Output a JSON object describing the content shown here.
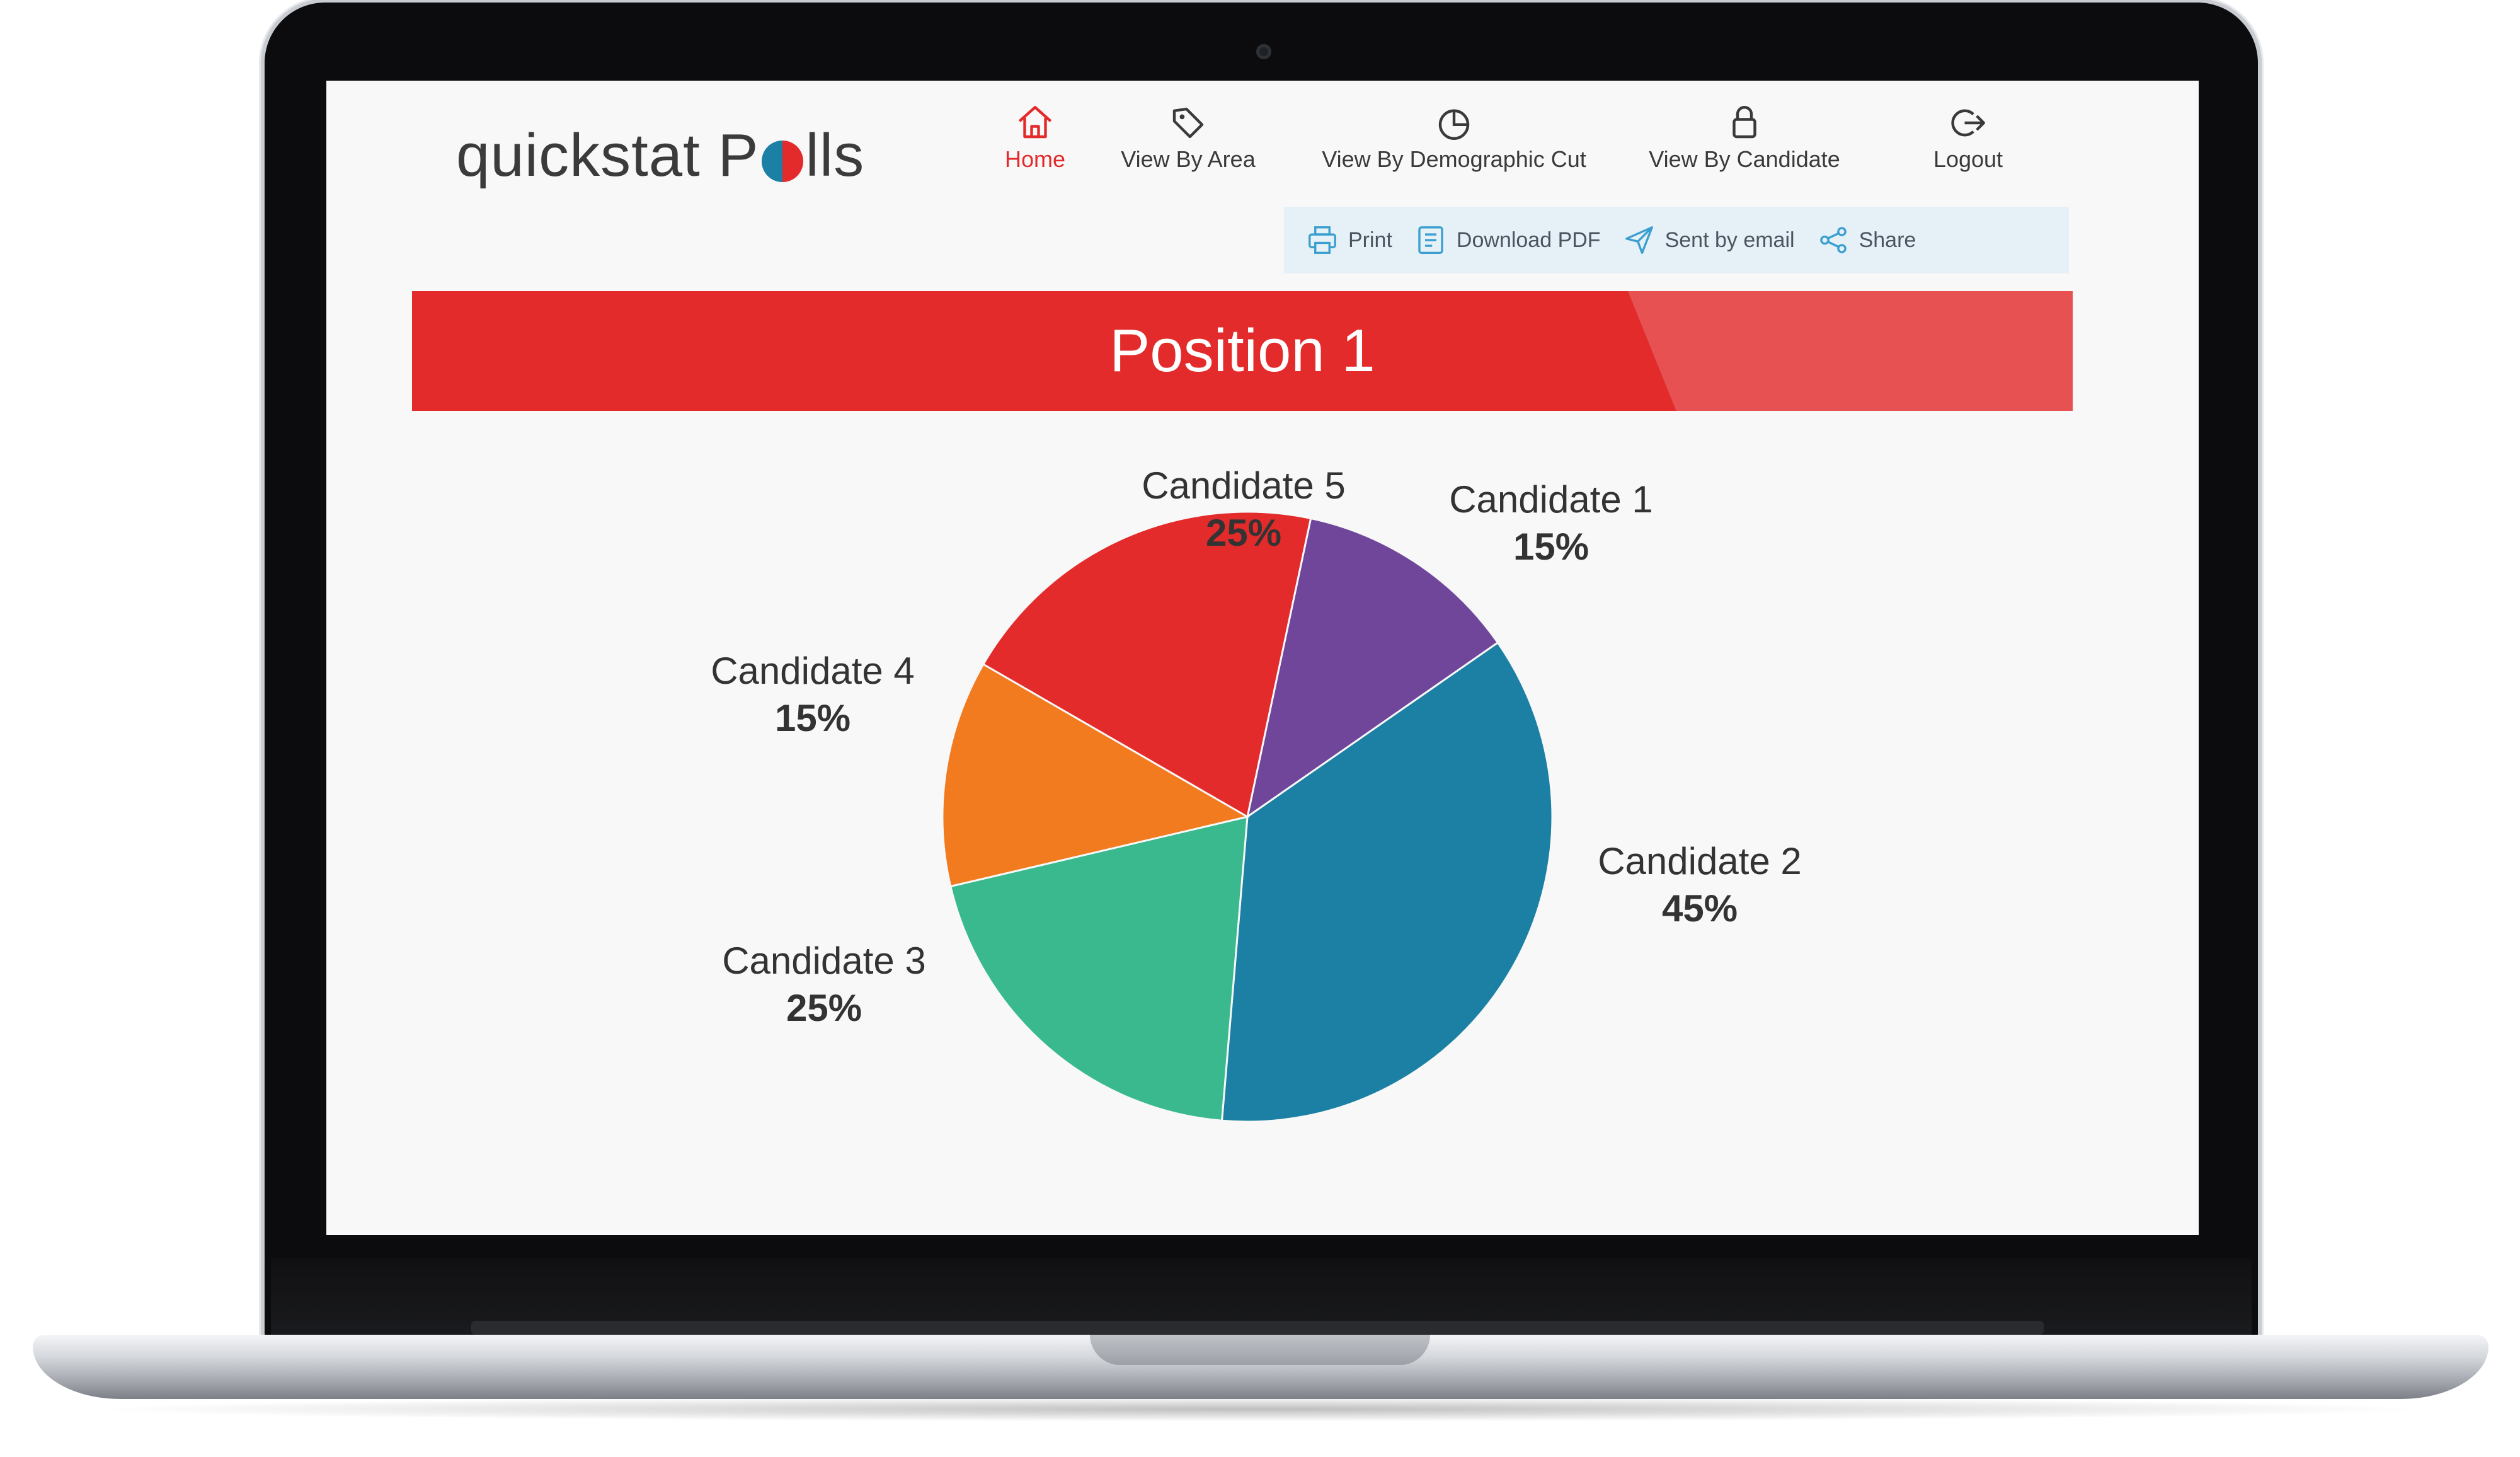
{
  "app": {
    "logo_text_left": "quickstat P",
    "logo_text_right": "lls"
  },
  "nav": [
    {
      "label": "Home",
      "icon": "home-icon",
      "active": true
    },
    {
      "label": "View By Area",
      "icon": "tag-icon",
      "active": false
    },
    {
      "label": "View By Demographic Cut",
      "icon": "pie-chart-icon",
      "active": false
    },
    {
      "label": "View By Candidate",
      "icon": "person-icon",
      "active": false
    },
    {
      "label": "Logout",
      "icon": "logout-icon",
      "active": false
    }
  ],
  "toolbar": [
    {
      "label": "Print",
      "icon": "printer-icon"
    },
    {
      "label": "Download PDF",
      "icon": "document-icon"
    },
    {
      "label": "Sent by email",
      "icon": "send-icon"
    },
    {
      "label": "Share",
      "icon": "share-icon"
    }
  ],
  "banner": {
    "title": "Position 1"
  },
  "colors": {
    "accent_red": "#e32b2b",
    "nav_text": "#3a3a3a",
    "toolbar_bg": "#e6f1f7"
  },
  "chart_data": {
    "type": "pie",
    "title": "Position 1",
    "slices": [
      {
        "label": "Candidate 1",
        "percent_label": "15%",
        "value": 15,
        "color": "#70469b"
      },
      {
        "label": "Candidate 2",
        "percent_label": "45%",
        "value": 45,
        "color": "#1b80a3"
      },
      {
        "label": "Candidate 3",
        "percent_label": "25%",
        "value": 25,
        "color": "#3ab98f"
      },
      {
        "label": "Candidate 4",
        "percent_label": "15%",
        "value": 15,
        "color": "#f27a1f"
      },
      {
        "label": "Candidate 5",
        "percent_label": "25%",
        "value": 25,
        "color": "#e32b2b"
      }
    ]
  }
}
